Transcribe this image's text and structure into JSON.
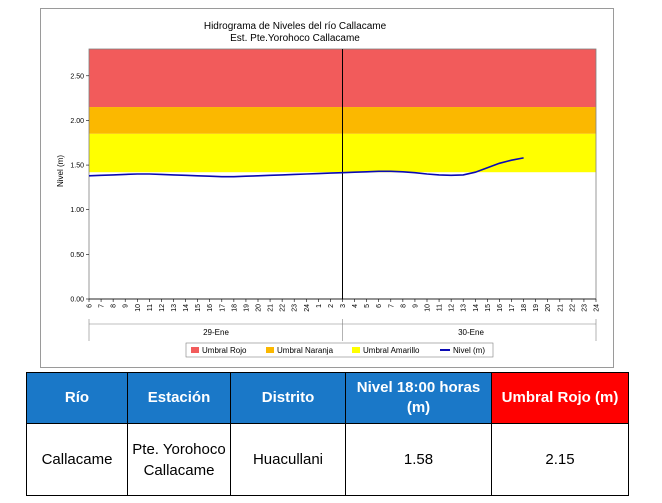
{
  "chart_data": {
    "type": "line",
    "title": "Hidrograma de Niveles del río Callacame",
    "subtitle": "Est. Pte.Yorohoco Callacame",
    "ylabel": "Nivel (m)",
    "ylim": [
      0,
      2.8
    ],
    "ytick_labels": [
      "0.00",
      "0.50",
      "1.00",
      "1.50",
      "2.00",
      "2.50"
    ],
    "ytick_values": [
      0,
      0.5,
      1.0,
      1.5,
      2.0,
      2.5
    ],
    "x_hour_labels": [
      "6",
      "7",
      "8",
      "9",
      "10",
      "11",
      "12",
      "13",
      "14",
      "15",
      "16",
      "17",
      "18",
      "19",
      "20",
      "21",
      "22",
      "23",
      "24",
      "1",
      "2",
      "3",
      "4",
      "5",
      "6",
      "7",
      "8",
      "9",
      "10",
      "11",
      "12",
      "13",
      "14",
      "15",
      "16",
      "17",
      "18",
      "19",
      "20",
      "21",
      "22",
      "23",
      "24"
    ],
    "day_labels": [
      "29-Ene",
      "30-Ene"
    ],
    "threshold_bands": [
      {
        "name": "Umbral Rojo",
        "from": 2.15,
        "to": 2.8,
        "color": "#f25b5b"
      },
      {
        "name": "Umbral Naranja",
        "from": 1.85,
        "to": 2.15,
        "color": "#fbb800"
      },
      {
        "name": "Umbral Amarillo",
        "from": 1.42,
        "to": 1.85,
        "color": "#ffff00"
      }
    ],
    "series": [
      {
        "name": "Nivel (m)",
        "color": "#0a0ab4",
        "values": [
          1.38,
          1.385,
          1.39,
          1.395,
          1.4,
          1.4,
          1.395,
          1.39,
          1.385,
          1.38,
          1.375,
          1.37,
          1.37,
          1.375,
          1.38,
          1.385,
          1.39,
          1.395,
          1.4,
          1.405,
          1.41,
          1.415,
          1.42,
          1.425,
          1.43,
          1.43,
          1.425,
          1.415,
          1.4,
          1.39,
          1.385,
          1.39,
          1.42,
          1.47,
          1.52,
          1.555,
          1.58
        ]
      }
    ],
    "legend": [
      "Umbral Rojo",
      "Umbral Naranja",
      "Umbral Amarillo",
      "Nivel (m)"
    ],
    "legend_position": "bottom"
  },
  "table": {
    "headers": [
      "Río",
      "Estación",
      "Distrito",
      "Nivel  18:00 horas (m)",
      "Umbral Rojo (m)"
    ],
    "row": [
      "Callacame",
      "Pte. Yorohoco Callacame",
      "Huacullani",
      "1.58",
      "2.15"
    ]
  }
}
